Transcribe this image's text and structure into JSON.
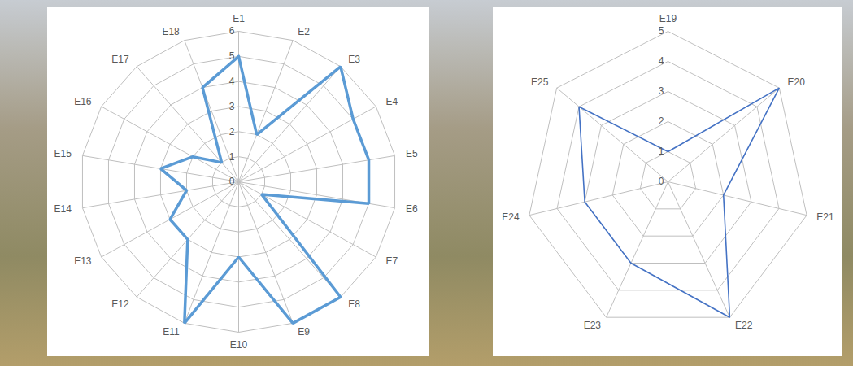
{
  "chart_data": [
    {
      "type": "radar",
      "categories": [
        "E1",
        "E2",
        "E3",
        "E4",
        "E5",
        "E6",
        "E7",
        "E8",
        "E9",
        "E10",
        "E11",
        "E12",
        "E13",
        "E14",
        "E15",
        "E16",
        "E17",
        "E18"
      ],
      "values": [
        5,
        2,
        6,
        5,
        5,
        5,
        1,
        6,
        6,
        3,
        6,
        3,
        3,
        2,
        3,
        2,
        1,
        4
      ],
      "color": "#5b9bd5",
      "ylim": [
        0,
        6
      ],
      "yticks": [
        0,
        1,
        2,
        3,
        4,
        5,
        6
      ],
      "grid": true
    },
    {
      "type": "radar",
      "categories": [
        "E19",
        "E20",
        "E21",
        "E22",
        "E23",
        "E24",
        "E25"
      ],
      "values": [
        1,
        5,
        2,
        5,
        3,
        3,
        4
      ],
      "color": "#4472c4",
      "ylim": [
        0,
        5
      ],
      "yticks": [
        0,
        1,
        2,
        3,
        4,
        5
      ],
      "grid": true
    }
  ]
}
